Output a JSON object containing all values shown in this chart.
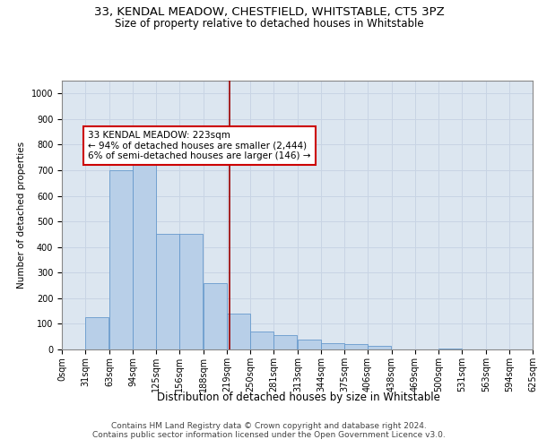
{
  "title1": "33, KENDAL MEADOW, CHESTFIELD, WHITSTABLE, CT5 3PZ",
  "title2": "Size of property relative to detached houses in Whitstable",
  "xlabel": "Distribution of detached houses by size in Whitstable",
  "ylabel": "Number of detached properties",
  "bar_color": "#b8cfe8",
  "bar_edge_color": "#6699cc",
  "grid_color": "#c8d4e4",
  "background_color": "#dce6f0",
  "property_line_color": "#990000",
  "annotation_text": "33 KENDAL MEADOW: 223sqm\n← 94% of detached houses are smaller (2,444)\n6% of semi-detached houses are larger (146) →",
  "annotation_box_color": "#ffffff",
  "annotation_box_edge": "#cc0000",
  "footer1": "Contains HM Land Registry data © Crown copyright and database right 2024.",
  "footer2": "Contains public sector information licensed under the Open Government Licence v3.0.",
  "bins": [
    0,
    31,
    63,
    94,
    125,
    156,
    188,
    219,
    250,
    281,
    313,
    344,
    375,
    406,
    438,
    469,
    500,
    531,
    563,
    594,
    625
  ],
  "counts": [
    0,
    125,
    700,
    775,
    450,
    450,
    260,
    140,
    70,
    55,
    40,
    25,
    20,
    15,
    0,
    0,
    5,
    0,
    0,
    0,
    0
  ],
  "ylim": [
    0,
    1050
  ],
  "yticks": [
    0,
    100,
    200,
    300,
    400,
    500,
    600,
    700,
    800,
    900,
    1000
  ],
  "title1_fontsize": 9.5,
  "title2_fontsize": 8.5,
  "xlabel_fontsize": 8.5,
  "ylabel_fontsize": 7.5,
  "tick_fontsize": 7,
  "footer_fontsize": 6.5,
  "annotation_fontsize": 7.5
}
